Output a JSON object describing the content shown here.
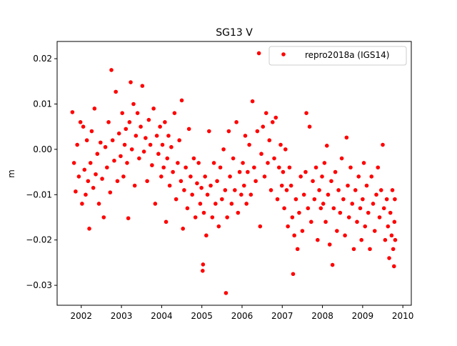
{
  "chart_data": {
    "type": "scatter",
    "title": "SG13 V",
    "xlabel": "",
    "ylabel": "m",
    "xlim": [
      2001.4,
      2010.21
    ],
    "ylim": [
      -0.0344,
      0.0238
    ],
    "xticks": [
      2002,
      2003,
      2004,
      2005,
      2006,
      2007,
      2008,
      2009,
      2010
    ],
    "xtick_labels": [
      "2002",
      "2003",
      "2004",
      "2005",
      "2006",
      "2007",
      "2008",
      "2009",
      "2010"
    ],
    "yticks": [
      0.02,
      0.01,
      0.0,
      -0.01,
      -0.02,
      -0.03
    ],
    "ytick_labels": [
      "0.02",
      "0.01",
      "0.00",
      "−0.01",
      "−0.02",
      "−0.03"
    ],
    "grid": false,
    "legend": {
      "placement": "top-right",
      "entries": [
        "repro2018a (IGS14)"
      ]
    },
    "series": [
      {
        "name": "repro2018a (IGS14)",
        "color": "#ff0000",
        "marker": "circle",
        "points": [
          [
            2001.78,
            0.0082
          ],
          [
            2001.82,
            -0.003
          ],
          [
            2001.86,
            -0.0093
          ],
          [
            2001.9,
            0.001
          ],
          [
            2001.94,
            -0.006
          ],
          [
            2001.98,
            0.006
          ],
          [
            2002.02,
            -0.012
          ],
          [
            2002.05,
            0.005
          ],
          [
            2002.08,
            -0.0045
          ],
          [
            2002.11,
            -0.01
          ],
          [
            2002.14,
            0.002
          ],
          [
            2002.17,
            -0.007
          ],
          [
            2002.2,
            -0.0175
          ],
          [
            2002.23,
            -0.003
          ],
          [
            2002.26,
            0.004
          ],
          [
            2002.3,
            -0.0085
          ],
          [
            2002.33,
            0.009
          ],
          [
            2002.36,
            -0.0055
          ],
          [
            2002.4,
            -0.001
          ],
          [
            2002.44,
            -0.012
          ],
          [
            2002.48,
            0.0015
          ],
          [
            2002.52,
            -0.0065
          ],
          [
            2002.56,
            -0.015
          ],
          [
            2002.6,
            0.0005
          ],
          [
            2002.64,
            -0.004
          ],
          [
            2002.68,
            0.006
          ],
          [
            2002.72,
            -0.0095
          ],
          [
            2002.75,
            0.0175
          ],
          [
            2002.78,
            0.002
          ],
          [
            2002.82,
            -0.0025
          ],
          [
            2002.86,
            0.0127
          ],
          [
            2002.9,
            -0.007
          ],
          [
            2002.94,
            0.0035
          ],
          [
            2002.98,
            -0.0015
          ],
          [
            2003.02,
            0.008
          ],
          [
            2003.05,
            -0.006
          ],
          [
            2003.08,
            0.001
          ],
          [
            2003.11,
            0.0045
          ],
          [
            2003.14,
            -0.003
          ],
          [
            2003.17,
            -0.0152
          ],
          [
            2003.2,
            0.006
          ],
          [
            2003.23,
            0.0148
          ],
          [
            2003.26,
            0.0
          ],
          [
            2003.3,
            0.01
          ],
          [
            2003.33,
            -0.008
          ],
          [
            2003.36,
            0.003
          ],
          [
            2003.4,
            0.008
          ],
          [
            2003.44,
            -0.002
          ],
          [
            2003.48,
            0.005
          ],
          [
            2003.52,
            0.014
          ],
          [
            2003.56,
            -0.0005
          ],
          [
            2003.6,
            0.0025
          ],
          [
            2003.64,
            -0.007
          ],
          [
            2003.68,
            0.0065
          ],
          [
            2003.72,
            0.001
          ],
          [
            2003.76,
            -0.0035
          ],
          [
            2003.8,
            0.009
          ],
          [
            2003.84,
            -0.012
          ],
          [
            2003.88,
            0.003
          ],
          [
            2003.92,
            -0.001
          ],
          [
            2003.96,
            0.005
          ],
          [
            2003.99,
            -0.006
          ],
          [
            2004.02,
            0.001
          ],
          [
            2004.05,
            -0.004
          ],
          [
            2004.08,
            0.006
          ],
          [
            2004.11,
            -0.016
          ],
          [
            2004.14,
            -0.002
          ],
          [
            2004.17,
            0.003
          ],
          [
            2004.2,
            -0.008
          ],
          [
            2004.24,
            0.0005
          ],
          [
            2004.28,
            -0.005
          ],
          [
            2004.32,
            0.008
          ],
          [
            2004.36,
            -0.011
          ],
          [
            2004.4,
            -0.003
          ],
          [
            2004.44,
            0.002
          ],
          [
            2004.48,
            -0.007
          ],
          [
            2004.5,
            0.0108
          ],
          [
            2004.53,
            -0.0175
          ],
          [
            2004.56,
            -0.009
          ],
          [
            2004.6,
            -0.004
          ],
          [
            2004.64,
            -0.013
          ],
          [
            2004.68,
            0.0045
          ],
          [
            2004.72,
            -0.006
          ],
          [
            2004.76,
            -0.01
          ],
          [
            2004.8,
            -0.002
          ],
          [
            2004.84,
            -0.015
          ],
          [
            2004.88,
            -0.0075
          ],
          [
            2004.92,
            -0.003
          ],
          [
            2004.96,
            -0.012
          ],
          [
            2004.99,
            -0.0085
          ],
          [
            2005.02,
            -0.0268
          ],
          [
            2005.03,
            -0.0254
          ],
          [
            2005.05,
            -0.014
          ],
          [
            2005.08,
            -0.006
          ],
          [
            2005.11,
            -0.019
          ],
          [
            2005.14,
            -0.01
          ],
          [
            2005.18,
            0.004
          ],
          [
            2005.22,
            -0.008
          ],
          [
            2005.26,
            -0.015
          ],
          [
            2005.3,
            -0.003
          ],
          [
            2005.34,
            -0.012
          ],
          [
            2005.38,
            -0.007
          ],
          [
            2005.42,
            -0.017
          ],
          [
            2005.46,
            -0.004
          ],
          [
            2005.5,
            -0.011
          ],
          [
            2005.54,
            0.0
          ],
          [
            2005.58,
            -0.009
          ],
          [
            2005.6,
            -0.0317
          ],
          [
            2005.63,
            -0.015
          ],
          [
            2005.67,
            0.004
          ],
          [
            2005.7,
            -0.006
          ],
          [
            2005.74,
            -0.012
          ],
          [
            2005.78,
            -0.002
          ],
          [
            2005.82,
            -0.009
          ],
          [
            2005.86,
            0.006
          ],
          [
            2005.9,
            -0.014
          ],
          [
            2005.94,
            -0.005
          ],
          [
            2005.98,
            -0.01
          ],
          [
            2006.02,
            -0.003
          ],
          [
            2006.05,
            -0.008
          ],
          [
            2006.08,
            0.003
          ],
          [
            2006.11,
            -0.012
          ],
          [
            2006.14,
            -0.005
          ],
          [
            2006.18,
            0.001
          ],
          [
            2006.22,
            -0.01
          ],
          [
            2006.26,
            0.0106
          ],
          [
            2006.3,
            -0.004
          ],
          [
            2006.34,
            -0.007
          ],
          [
            2006.38,
            0.004
          ],
          [
            2006.42,
            0.0212
          ],
          [
            2006.45,
            -0.017
          ],
          [
            2006.48,
            -0.001
          ],
          [
            2006.52,
            0.005
          ],
          [
            2006.56,
            -0.006
          ],
          [
            2006.6,
            0.008
          ],
          [
            2006.64,
            -0.003
          ],
          [
            2006.68,
            0.002
          ],
          [
            2006.72,
            -0.009
          ],
          [
            2006.76,
            0.006
          ],
          [
            2006.8,
            -0.002
          ],
          [
            2006.84,
            0.007
          ],
          [
            2006.88,
            -0.011
          ],
          [
            2006.92,
            -0.004
          ],
          [
            2006.96,
            0.001
          ],
          [
            2006.99,
            -0.008
          ],
          [
            2007.02,
            -0.005
          ],
          [
            2007.05,
            -0.013
          ],
          [
            2007.08,
            0.0
          ],
          [
            2007.11,
            -0.009
          ],
          [
            2007.14,
            -0.017
          ],
          [
            2007.18,
            -0.004
          ],
          [
            2007.22,
            -0.008
          ],
          [
            2007.25,
            -0.015
          ],
          [
            2007.27,
            -0.0275
          ],
          [
            2007.3,
            -0.019
          ],
          [
            2007.34,
            -0.011
          ],
          [
            2007.38,
            -0.022
          ],
          [
            2007.42,
            -0.014
          ],
          [
            2007.46,
            -0.006
          ],
          [
            2007.5,
            -0.018
          ],
          [
            2007.54,
            -0.01
          ],
          [
            2007.58,
            -0.005
          ],
          [
            2007.6,
            0.008
          ],
          [
            2007.64,
            -0.013
          ],
          [
            2007.68,
            0.005
          ],
          [
            2007.72,
            -0.016
          ],
          [
            2007.76,
            -0.007
          ],
          [
            2007.8,
            -0.011
          ],
          [
            2007.84,
            -0.004
          ],
          [
            2007.88,
            -0.02
          ],
          [
            2007.92,
            -0.009
          ],
          [
            2007.96,
            -0.013
          ],
          [
            2007.99,
            -0.006
          ],
          [
            2008.02,
            -0.012
          ],
          [
            2008.05,
            -0.003
          ],
          [
            2008.08,
            -0.016
          ],
          [
            2008.11,
            0.0008
          ],
          [
            2008.14,
            -0.01
          ],
          [
            2008.18,
            -0.021
          ],
          [
            2008.22,
            -0.007
          ],
          [
            2008.25,
            -0.0255
          ],
          [
            2008.28,
            -0.013
          ],
          [
            2008.32,
            -0.005
          ],
          [
            2008.36,
            -0.018
          ],
          [
            2008.4,
            -0.009
          ],
          [
            2008.44,
            -0.014
          ],
          [
            2008.48,
            -0.002
          ],
          [
            2008.52,
            -0.011
          ],
          [
            2008.56,
            -0.019
          ],
          [
            2008.6,
            0.0026
          ],
          [
            2008.63,
            -0.008
          ],
          [
            2008.66,
            -0.015
          ],
          [
            2008.7,
            -0.004
          ],
          [
            2008.74,
            -0.012
          ],
          [
            2008.78,
            -0.022
          ],
          [
            2008.82,
            -0.009
          ],
          [
            2008.86,
            -0.016
          ],
          [
            2008.9,
            -0.006
          ],
          [
            2008.94,
            -0.013
          ],
          [
            2008.97,
            -0.02
          ],
          [
            2009.0,
            -0.011
          ],
          [
            2009.03,
            -0.003
          ],
          [
            2009.06,
            -0.017
          ],
          [
            2009.1,
            -0.008
          ],
          [
            2009.14,
            -0.014
          ],
          [
            2009.18,
            -0.022
          ],
          [
            2009.22,
            -0.006
          ],
          [
            2009.26,
            -0.012
          ],
          [
            2009.3,
            -0.018
          ],
          [
            2009.34,
            -0.01
          ],
          [
            2009.38,
            -0.004
          ],
          [
            2009.42,
            -0.015
          ],
          [
            2009.46,
            -0.009
          ],
          [
            2009.5,
            0.001
          ],
          [
            2009.53,
            -0.013
          ],
          [
            2009.56,
            -0.02
          ],
          [
            2009.6,
            -0.011
          ],
          [
            2009.63,
            -0.017
          ],
          [
            2009.66,
            -0.024
          ],
          [
            2009.69,
            -0.014
          ],
          [
            2009.72,
            -0.019
          ],
          [
            2009.74,
            -0.009
          ],
          [
            2009.76,
            -0.022
          ],
          [
            2009.78,
            -0.0258
          ],
          [
            2009.79,
            -0.016
          ],
          [
            2009.8,
            -0.011
          ],
          [
            2009.81,
            -0.02
          ]
        ]
      }
    ]
  }
}
